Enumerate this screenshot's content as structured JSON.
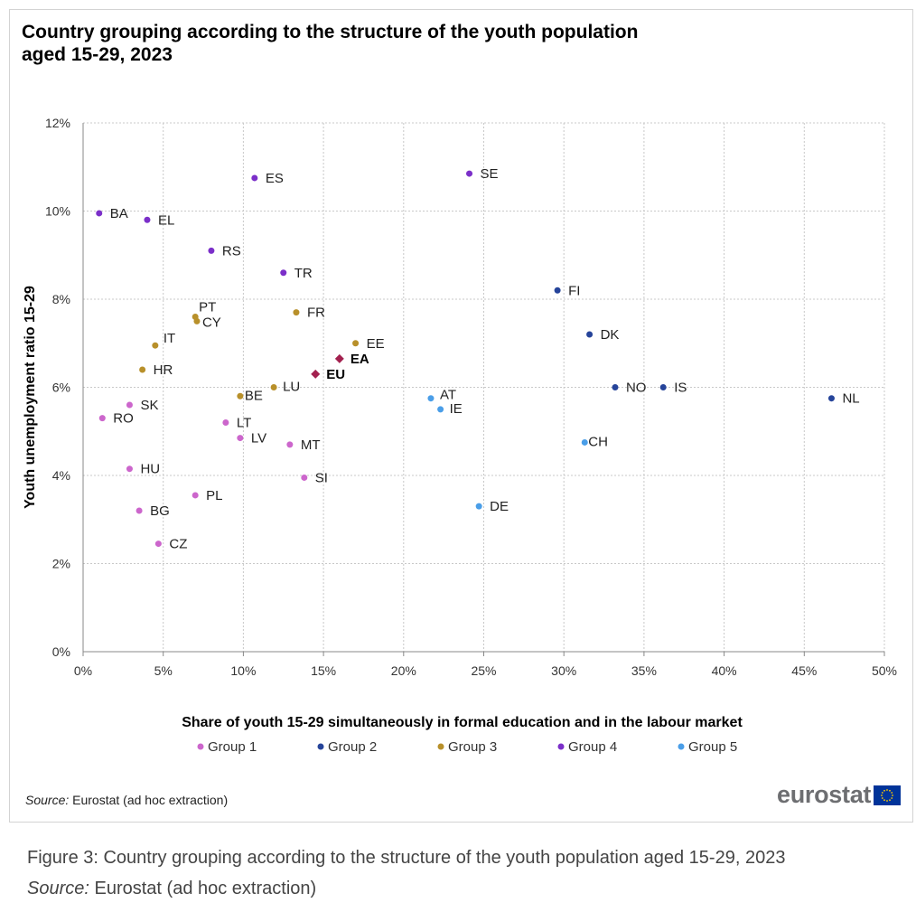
{
  "figure": {
    "title": "Country grouping according to the structure of the youth population aged 15-29, 2023",
    "source_label": "Source:",
    "source_text": " Eurostat (ad hoc extraction)",
    "logo_text": "eurostat",
    "logo_flag_icon": "eu-flag-icon"
  },
  "caption": {
    "text": "Figure 3: Country grouping according to the structure of the youth population aged 15-29, 2023",
    "source_label": "Source:",
    "source_text": " Eurostat (ad hoc extraction)"
  },
  "chart_data": {
    "type": "scatter",
    "title": "Country grouping according to the structure of the youth population aged 15-29, 2023",
    "xlabel": "Share of youth 15-29 simultaneously in formal education and in the labour market",
    "ylabel": "Youth unemployment ratio 15-29",
    "xlim": [
      0,
      50
    ],
    "ylim": [
      0,
      12
    ],
    "x_ticks": [
      "0%",
      "5%",
      "10%",
      "15%",
      "20%",
      "25%",
      "30%",
      "35%",
      "40%",
      "45%",
      "50%"
    ],
    "y_ticks": [
      "0%",
      "2%",
      "4%",
      "6%",
      "8%",
      "10%",
      "12%"
    ],
    "grid": true,
    "legend_position": "bottom",
    "series": [
      {
        "name": "Group 1",
        "color": "#cc66cc",
        "points": [
          {
            "label": "SK",
            "x": 2.9,
            "y": 5.6
          },
          {
            "label": "RO",
            "x": 1.2,
            "y": 5.3
          },
          {
            "label": "HU",
            "x": 2.9,
            "y": 4.15
          },
          {
            "label": "BG",
            "x": 3.5,
            "y": 3.2
          },
          {
            "label": "CZ",
            "x": 4.7,
            "y": 2.45
          },
          {
            "label": "PL",
            "x": 7.0,
            "y": 3.55
          },
          {
            "label": "LT",
            "x": 8.9,
            "y": 5.2
          },
          {
            "label": "LV",
            "x": 9.8,
            "y": 4.85
          },
          {
            "label": "MT",
            "x": 12.9,
            "y": 4.7
          },
          {
            "label": "SI",
            "x": 13.8,
            "y": 3.95
          }
        ]
      },
      {
        "name": "Group 2",
        "color": "#26449a",
        "points": [
          {
            "label": "FI",
            "x": 29.6,
            "y": 8.2
          },
          {
            "label": "DK",
            "x": 31.6,
            "y": 7.2
          },
          {
            "label": "NO",
            "x": 33.2,
            "y": 6.0
          },
          {
            "label": "IS",
            "x": 36.2,
            "y": 6.0
          },
          {
            "label": "NL",
            "x": 46.7,
            "y": 5.75
          }
        ]
      },
      {
        "name": "Group 3",
        "color": "#b8902a",
        "points": [
          {
            "label": "PT",
            "x": 7.0,
            "y": 7.6
          },
          {
            "label": "CY",
            "x": 7.1,
            "y": 7.5
          },
          {
            "label": "IT",
            "x": 4.5,
            "y": 6.95
          },
          {
            "label": "HR",
            "x": 3.7,
            "y": 6.4
          },
          {
            "label": "FR",
            "x": 13.3,
            "y": 7.7
          },
          {
            "label": "EE",
            "x": 17.0,
            "y": 7.0
          },
          {
            "label": "BE",
            "x": 9.8,
            "y": 5.8
          },
          {
            "label": "LU",
            "x": 11.9,
            "y": 6.0
          }
        ]
      },
      {
        "name": "Group 4",
        "color": "#7b2fc9",
        "points": [
          {
            "label": "BA",
            "x": 1.0,
            "y": 9.95
          },
          {
            "label": "EL",
            "x": 4.0,
            "y": 9.8
          },
          {
            "label": "RS",
            "x": 8.0,
            "y": 9.1
          },
          {
            "label": "ES",
            "x": 10.7,
            "y": 10.75
          },
          {
            "label": "TR",
            "x": 12.5,
            "y": 8.6
          },
          {
            "label": "SE",
            "x": 24.1,
            "y": 10.85
          }
        ]
      },
      {
        "name": "Group 5",
        "color": "#4a9ee8",
        "points": [
          {
            "label": "AT",
            "x": 21.7,
            "y": 5.75
          },
          {
            "label": "IE",
            "x": 22.3,
            "y": 5.5
          },
          {
            "label": "CH",
            "x": 31.3,
            "y": 4.75
          },
          {
            "label": "DE",
            "x": 24.7,
            "y": 3.3
          }
        ]
      }
    ],
    "aggregates": {
      "color": "#a3214f",
      "points": [
        {
          "label": "EA",
          "x": 16.0,
          "y": 6.65
        },
        {
          "label": "EU",
          "x": 14.5,
          "y": 6.3
        }
      ]
    }
  }
}
